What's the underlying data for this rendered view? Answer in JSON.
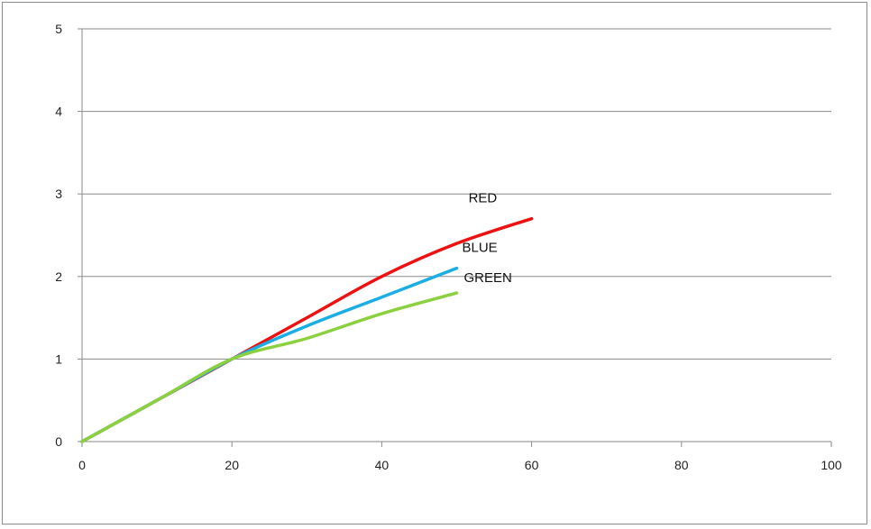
{
  "chart_data": {
    "type": "line",
    "title": "",
    "xlabel": "",
    "ylabel": "",
    "xlim": [
      0,
      100
    ],
    "ylim": [
      0,
      5
    ],
    "x_ticks": [
      0,
      20,
      40,
      60,
      80,
      100
    ],
    "y_ticks": [
      0,
      1,
      2,
      3,
      4,
      5
    ],
    "grid": "horizontal",
    "legend": "none",
    "series": [
      {
        "name": "RED",
        "color": "#ee1111",
        "x": [
          0,
          10,
          20,
          30,
          40,
          50,
          60
        ],
        "values": [
          0,
          0.5,
          1.0,
          1.5,
          2.0,
          2.4,
          2.7
        ]
      },
      {
        "name": "BLUE",
        "color": "#1aaee5",
        "x": [
          0,
          10,
          20,
          30,
          40,
          50
        ],
        "values": [
          0,
          0.5,
          1.0,
          1.4,
          1.75,
          2.1
        ]
      },
      {
        "name": "GREEN",
        "color": "#8bd03f",
        "x": [
          0,
          10,
          20,
          30,
          40,
          50
        ],
        "values": [
          0,
          0.5,
          1.0,
          1.25,
          1.55,
          1.8
        ]
      }
    ]
  }
}
